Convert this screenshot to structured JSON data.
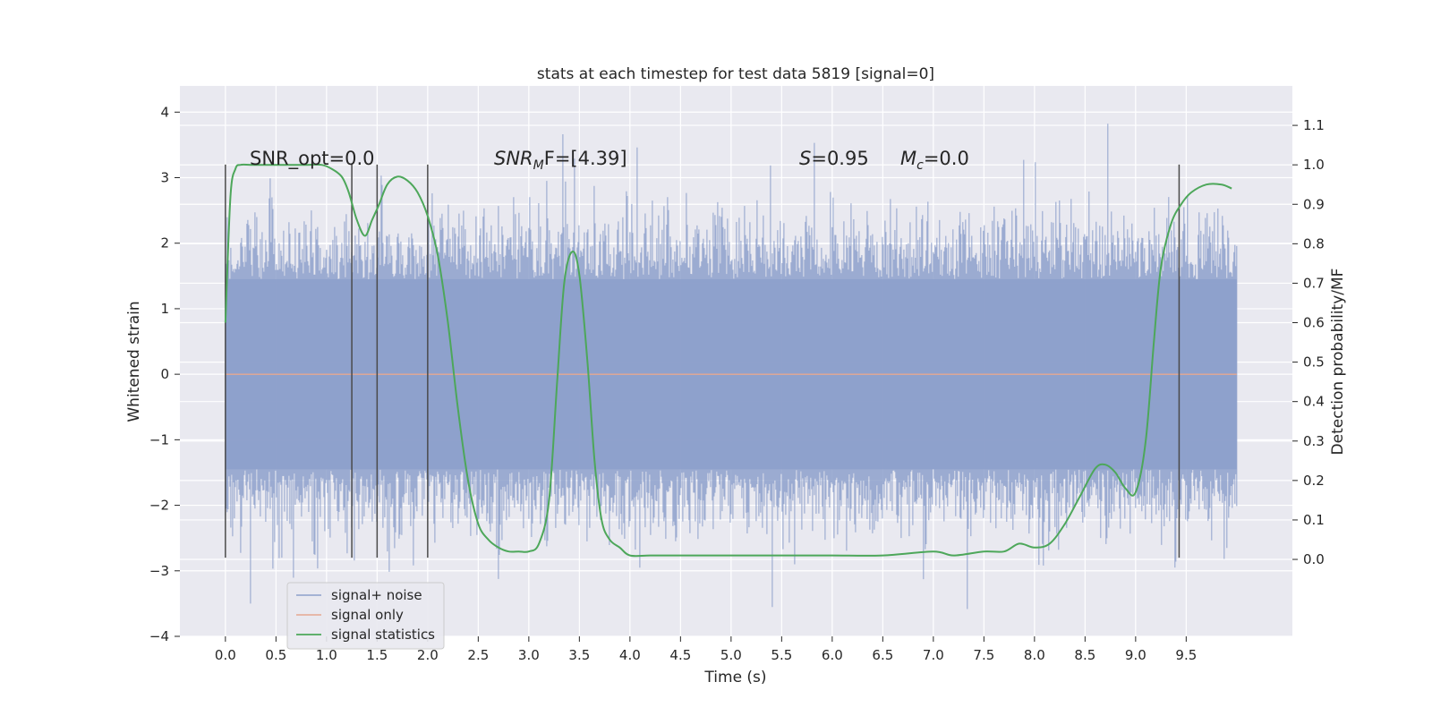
{
  "chart_data": {
    "type": "line",
    "title": "stats at each timestep for test data 5819 [signal=0]",
    "xlabel": "Time (s)",
    "ylabel_left": "Whitened strain",
    "ylabel_right": "Detection probability/MF",
    "xlim": [
      -0.45,
      10.55
    ],
    "ylim_left": [
      -4,
      4.4
    ],
    "ylim_right": [
      -0.195,
      1.2
    ],
    "x_ticks": [
      0.0,
      0.5,
      1.0,
      1.5,
      2.0,
      2.5,
      3.0,
      3.5,
      4.0,
      4.5,
      5.0,
      5.5,
      6.0,
      6.5,
      7.0,
      7.5,
      8.0,
      8.5,
      9.0,
      9.5
    ],
    "x_tick_labels": [
      "0.0",
      "0.5",
      "1.0",
      "1.5",
      "2.0",
      "2.5",
      "3.0",
      "3.5",
      "4.0",
      "4.5",
      "5.0",
      "5.5",
      "6.0",
      "6.5",
      "7.0",
      "7.5",
      "8.0",
      "8.5",
      "9.0",
      "9.5"
    ],
    "y_left_ticks": [
      4,
      3,
      2,
      1,
      0,
      -1,
      -2,
      -3,
      -4
    ],
    "y_left_tick_labels": [
      "4",
      "3",
      "2",
      "1",
      "0",
      "−1",
      "−2",
      "−3",
      "−4"
    ],
    "y_right_ticks": [
      1.1,
      1.0,
      0.9,
      0.8,
      0.7,
      0.6,
      0.5,
      0.4,
      0.3,
      0.2,
      0.1,
      0.0
    ],
    "y_right_tick_labels": [
      "1.1",
      "1.0",
      "0.9",
      "0.8",
      "0.7",
      "0.6",
      "0.5",
      "0.4",
      "0.3",
      "0.2",
      "0.1",
      "0.0"
    ],
    "grid": true,
    "legend_placement": "lower-left",
    "annotations": [
      {
        "text": "SNR_opt=0.0",
        "x": 0.2,
        "y": 3.25
      },
      {
        "text_main": "SNR",
        "text_sub": "M",
        "text_rest": "F=[4.39]",
        "x": 2.6,
        "y": 3.25
      },
      {
        "text_main": "S",
        "text_rest": "=0.95",
        "x": 5.6,
        "y": 3.25
      },
      {
        "text_main": "M",
        "text_sub": "c",
        "text_rest": "=0.0",
        "x": 6.6,
        "y": 3.25
      }
    ],
    "segment_markers_x": [
      0.0,
      1.25,
      1.5,
      2.0,
      9.43
    ],
    "segment_marker_range": [
      -2.8,
      3.2
    ],
    "series": [
      {
        "name": "signal+ noise",
        "color": "#8da0cb",
        "axis": "left",
        "x_range": [
          0.0,
          10.0
        ],
        "band": {
          "typical_low": -1.45,
          "typical_high": 1.45,
          "dense_low": -2.0,
          "dense_high": 2.0,
          "max": 4.05,
          "min": -3.65
        }
      },
      {
        "name": "signal only",
        "color": "#e5a891",
        "axis": "left",
        "x": [
          0.0,
          10.0
        ],
        "values": [
          0.0,
          0.0
        ]
      },
      {
        "name": "signal statistics",
        "color": "#4da75a",
        "axis": "right",
        "x": [
          0.0,
          0.05,
          0.1,
          0.15,
          0.25,
          0.4,
          0.6,
          0.8,
          0.95,
          1.05,
          1.15,
          1.22,
          1.3,
          1.38,
          1.45,
          1.52,
          1.6,
          1.7,
          1.8,
          1.9,
          2.0,
          2.1,
          2.2,
          2.3,
          2.4,
          2.5,
          2.6,
          2.7,
          2.8,
          2.9,
          3.0,
          3.1,
          3.2,
          3.28,
          3.35,
          3.43,
          3.5,
          3.58,
          3.65,
          3.72,
          3.8,
          3.9,
          4.0,
          4.2,
          4.5,
          5.0,
          5.5,
          6.0,
          6.5,
          7.0,
          7.2,
          7.5,
          7.7,
          7.85,
          8.0,
          8.15,
          8.3,
          8.45,
          8.6,
          8.7,
          8.8,
          8.9,
          9.0,
          9.1,
          9.18,
          9.25,
          9.35,
          9.45,
          9.55,
          9.7,
          9.85,
          9.95
        ],
        "values": [
          0.6,
          0.92,
          0.99,
          1.0,
          1.0,
          1.0,
          1.0,
          1.0,
          1.0,
          0.99,
          0.97,
          0.93,
          0.86,
          0.82,
          0.86,
          0.9,
          0.95,
          0.97,
          0.96,
          0.93,
          0.87,
          0.77,
          0.6,
          0.38,
          0.2,
          0.09,
          0.05,
          0.03,
          0.02,
          0.02,
          0.02,
          0.04,
          0.15,
          0.45,
          0.7,
          0.78,
          0.72,
          0.5,
          0.25,
          0.1,
          0.05,
          0.03,
          0.01,
          0.01,
          0.01,
          0.01,
          0.01,
          0.01,
          0.01,
          0.02,
          0.01,
          0.02,
          0.02,
          0.04,
          0.03,
          0.04,
          0.09,
          0.16,
          0.23,
          0.24,
          0.22,
          0.18,
          0.17,
          0.3,
          0.55,
          0.74,
          0.85,
          0.9,
          0.93,
          0.95,
          0.95,
          0.94
        ]
      }
    ]
  }
}
